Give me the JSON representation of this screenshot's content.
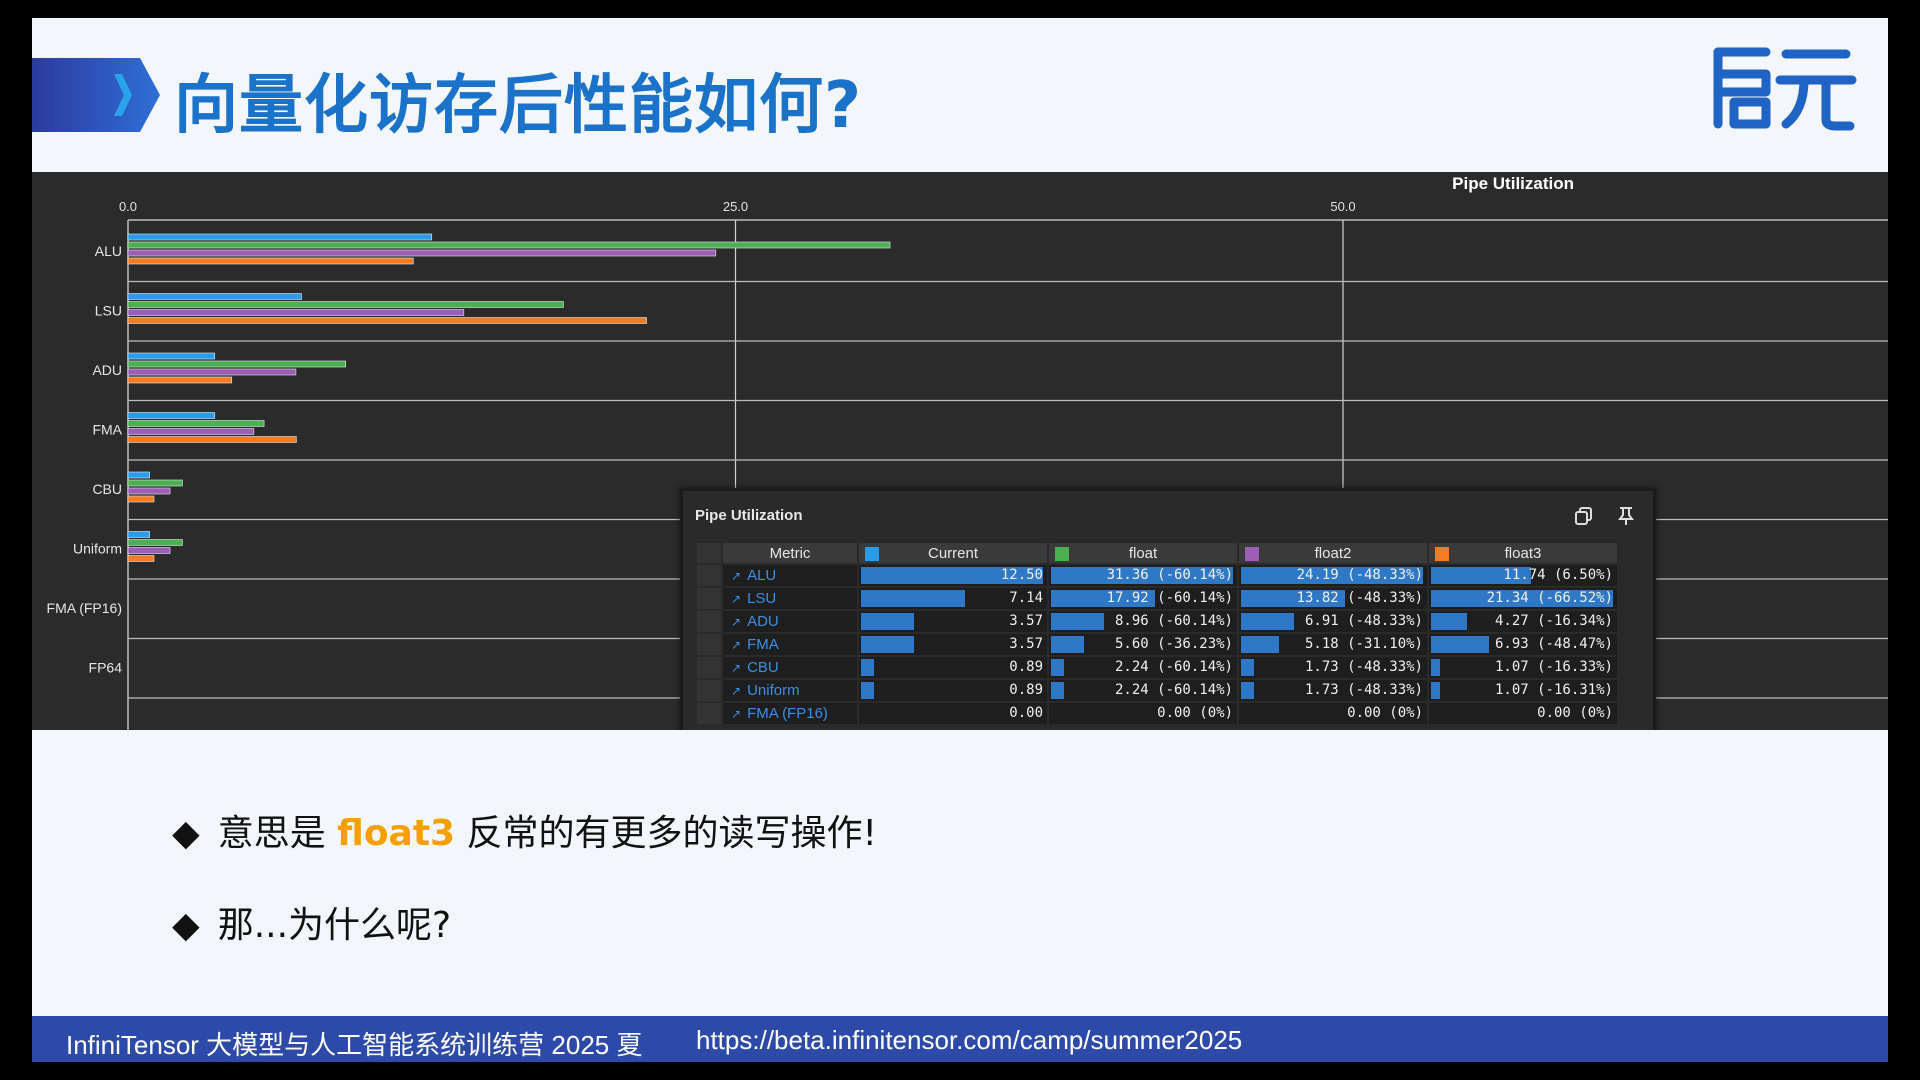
{
  "slide": {
    "title": "向量化访存后性能如何?",
    "logo_text": "启元"
  },
  "chart_data": {
    "type": "bar",
    "orientation": "horizontal",
    "title": "Pipe Utilization",
    "categories": [
      "ALU",
      "LSU",
      "ADU",
      "FMA",
      "CBU",
      "Uniform",
      "FMA (FP16)",
      "FP64"
    ],
    "x_ticks": [
      "0.0",
      "25.0",
      "50.0"
    ],
    "xlim": [
      0,
      60
    ],
    "series": [
      {
        "name": "Current",
        "color": "#2b9ce8",
        "values": [
          12.5,
          7.14,
          3.57,
          3.57,
          0.89,
          0.89,
          0.0,
          0.0
        ]
      },
      {
        "name": "float",
        "color": "#4caf50",
        "values": [
          31.36,
          17.92,
          8.96,
          5.6,
          2.24,
          2.24,
          0.0,
          0.0
        ]
      },
      {
        "name": "float2",
        "color": "#9c5fb5",
        "values": [
          24.19,
          13.82,
          6.91,
          5.18,
          1.73,
          1.73,
          0.0,
          0.0
        ]
      },
      {
        "name": "float3",
        "color": "#f57c20",
        "values": [
          11.74,
          21.34,
          4.27,
          6.93,
          1.07,
          1.07,
          0.0,
          0.0
        ]
      }
    ],
    "grid": true
  },
  "panel": {
    "title": "Pipe Utilization",
    "copy_icon": "copy-icon",
    "pin_icon": "pin-icon",
    "columns": [
      {
        "label": "Metric"
      },
      {
        "label": "Current",
        "color": "#2b9ce8"
      },
      {
        "label": "float",
        "color": "#4caf50"
      },
      {
        "label": "float2",
        "color": "#9c5fb5"
      },
      {
        "label": "float3",
        "color": "#f57c20"
      }
    ],
    "rows": [
      {
        "metric": "ALU",
        "cells": [
          {
            "text": "12.50",
            "frac": 1.0
          },
          {
            "text": "31.36 (-60.14%)",
            "frac": 1.0
          },
          {
            "text": "24.19 (-48.33%)",
            "frac": 1.0
          },
          {
            "text": "11.74 (6.50%)",
            "frac": 0.55
          }
        ]
      },
      {
        "metric": "LSU",
        "cells": [
          {
            "text": "7.14",
            "frac": 0.57
          },
          {
            "text": "17.92 (-60.14%)",
            "frac": 0.57
          },
          {
            "text": "13.82 (-48.33%)",
            "frac": 0.57
          },
          {
            "text": "21.34 (-66.52%)",
            "frac": 1.0
          }
        ]
      },
      {
        "metric": "ADU",
        "cells": [
          {
            "text": "3.57",
            "frac": 0.29
          },
          {
            "text": "8.96 (-60.14%)",
            "frac": 0.29
          },
          {
            "text": "6.91 (-48.33%)",
            "frac": 0.29
          },
          {
            "text": "4.27 (-16.34%)",
            "frac": 0.2
          }
        ]
      },
      {
        "metric": "FMA",
        "cells": [
          {
            "text": "3.57",
            "frac": 0.29
          },
          {
            "text": "5.60 (-36.23%)",
            "frac": 0.18
          },
          {
            "text": "5.18 (-31.10%)",
            "frac": 0.21
          },
          {
            "text": "6.93 (-48.47%)",
            "frac": 0.32
          }
        ]
      },
      {
        "metric": "CBU",
        "cells": [
          {
            "text": "0.89",
            "frac": 0.07
          },
          {
            "text": "2.24 (-60.14%)",
            "frac": 0.07
          },
          {
            "text": "1.73 (-48.33%)",
            "frac": 0.07
          },
          {
            "text": "1.07 (-16.33%)",
            "frac": 0.05
          }
        ]
      },
      {
        "metric": "Uniform",
        "cells": [
          {
            "text": "0.89",
            "frac": 0.07
          },
          {
            "text": "2.24 (-60.14%)",
            "frac": 0.07
          },
          {
            "text": "1.73 (-48.33%)",
            "frac": 0.07
          },
          {
            "text": "1.07 (-16.31%)",
            "frac": 0.05
          }
        ]
      },
      {
        "metric": "FMA (FP16)",
        "cells": [
          {
            "text": "0.00",
            "frac": 0
          },
          {
            "text": "0.00 (0%)",
            "frac": 0
          },
          {
            "text": "0.00 (0%)",
            "frac": 0
          },
          {
            "text": "0.00 (0%)",
            "frac": 0
          }
        ]
      }
    ]
  },
  "bullets": {
    "b1_pre": "意思是 ",
    "b1_highlight": "float3",
    "b1_post": " 反常的有更多的读写操作!",
    "b2": "那...为什么呢?",
    "mark": "◆"
  },
  "footer": {
    "left": "InfiniTensor 大模型与人工智能系统训练营 2025 夏",
    "url": "https://beta.infinitensor.com/camp/summer2025"
  }
}
